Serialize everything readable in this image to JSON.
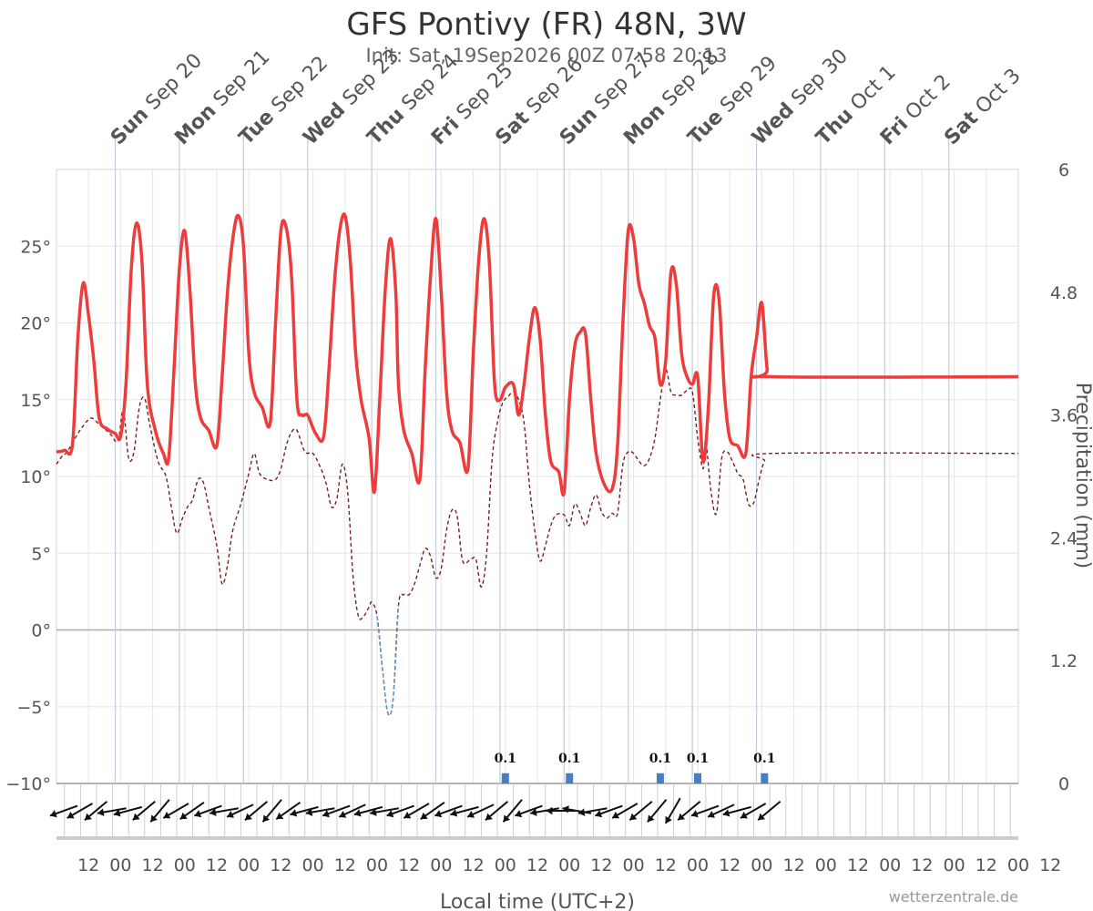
{
  "chart_data": {
    "type": "line",
    "title": "GFS Pontivy (FR) 48N, 3W",
    "subtitle": "Init: Sat, 19Sep2026 00Z 07:58 20:13",
    "xlabel": "Local time (UTC+2)",
    "ylabel_right": "Precipitation (mm)",
    "credit": "wetterzentrale.de",
    "temperature_axis": {
      "ylim": [
        -10,
        30
      ],
      "ticks": [
        -10,
        -5,
        0,
        5,
        10,
        15,
        20,
        25
      ],
      "tick_labels": [
        "−10°",
        "−5°",
        "0°",
        "5°",
        "10°",
        "15°",
        "20°",
        "25°"
      ]
    },
    "precipitation_axis": {
      "ylim": [
        0,
        6
      ],
      "ticks": [
        0,
        1.2,
        2.4,
        3.6,
        4.8,
        6
      ],
      "tick_labels": [
        "0",
        "1.2",
        "2.4",
        "3.6",
        "4.8",
        "6"
      ]
    },
    "x_range_hours": [
      0,
      360
    ],
    "time_tick_labels": [
      "12",
      "00",
      "12",
      "00",
      "12",
      "00",
      "12",
      "00",
      "12",
      "00",
      "12",
      "00",
      "12",
      "00",
      "12",
      "00",
      "12",
      "00",
      "12",
      "00",
      "12",
      "00",
      "12",
      "00",
      "12",
      "00",
      "12",
      "00",
      "12",
      "00",
      "12"
    ],
    "days": [
      {
        "dow": "Sun",
        "date": "Sep 20",
        "hour": 22
      },
      {
        "dow": "Mon",
        "date": "Sep 21",
        "hour": 46
      },
      {
        "dow": "Tue",
        "date": "Sep 22",
        "hour": 70
      },
      {
        "dow": "Wed",
        "date": "Sep 23",
        "hour": 94
      },
      {
        "dow": "Thu",
        "date": "Sep 24",
        "hour": 118
      },
      {
        "dow": "Fri",
        "date": "Sep 25",
        "hour": 142
      },
      {
        "dow": "Sat",
        "date": "Sep 26",
        "hour": 166
      },
      {
        "dow": "Sun",
        "date": "Sep 27",
        "hour": 190
      },
      {
        "dow": "Mon",
        "date": "Sep 28",
        "hour": 214
      },
      {
        "dow": "Tue",
        "date": "Sep 29",
        "hour": 238
      },
      {
        "dow": "Wed",
        "date": "Sep 30",
        "hour": 262
      },
      {
        "dow": "Thu",
        "date": "Oct 1",
        "hour": 286
      },
      {
        "dow": "Fri",
        "date": "Oct 2",
        "hour": 310
      },
      {
        "dow": "Sat",
        "date": "Oct 3",
        "hour": 334
      }
    ],
    "series": [
      {
        "color": "#ee3b3b",
        "style": "solid",
        "points": [
          [
            0,
            11.6
          ],
          [
            3,
            11.7
          ],
          [
            6,
            12.1
          ],
          [
            8,
            19.0
          ],
          [
            10,
            22.6
          ],
          [
            12,
            20.5
          ],
          [
            14,
            17.5
          ],
          [
            16,
            13.8
          ],
          [
            19,
            13.1
          ],
          [
            22,
            12.8
          ],
          [
            24,
            12.6
          ],
          [
            26,
            16.0
          ],
          [
            28,
            23.5
          ],
          [
            30,
            26.5
          ],
          [
            32,
            24.0
          ],
          [
            34,
            16.0
          ],
          [
            37,
            13.0
          ],
          [
            40,
            11.5
          ],
          [
            42,
            11.2
          ],
          [
            44,
            17.0
          ],
          [
            46,
            23.5
          ],
          [
            48,
            26.0
          ],
          [
            50,
            22.0
          ],
          [
            52,
            16.0
          ],
          [
            54,
            13.8
          ],
          [
            57,
            13.0
          ],
          [
            60,
            12.0
          ],
          [
            62,
            16.5
          ],
          [
            64,
            22.0
          ],
          [
            66,
            25.5
          ],
          [
            68,
            27.0
          ],
          [
            70,
            25.0
          ],
          [
            72,
            18.0
          ],
          [
            74,
            15.5
          ],
          [
            77,
            14.5
          ],
          [
            80,
            13.5
          ],
          [
            82,
            20.0
          ],
          [
            84,
            26.0
          ],
          [
            86,
            26.2
          ],
          [
            88,
            23.0
          ],
          [
            90,
            15.0
          ],
          [
            92,
            14.0
          ],
          [
            94,
            14.0
          ],
          [
            97,
            12.8
          ],
          [
            100,
            12.6
          ],
          [
            102,
            17.0
          ],
          [
            104,
            22.5
          ],
          [
            106,
            26.0
          ],
          [
            108,
            27.0
          ],
          [
            110,
            24.0
          ],
          [
            112,
            18.0
          ],
          [
            114,
            15.0
          ],
          [
            117,
            12.5
          ],
          [
            119,
            9.0
          ],
          [
            121,
            15.0
          ],
          [
            123,
            22.0
          ],
          [
            125,
            25.5
          ],
          [
            127,
            22.0
          ],
          [
            128,
            16.0
          ],
          [
            130,
            13.0
          ],
          [
            133,
            11.5
          ],
          [
            136,
            9.8
          ],
          [
            138,
            17.0
          ],
          [
            140,
            23.0
          ],
          [
            142,
            26.8
          ],
          [
            144,
            22.0
          ],
          [
            146,
            15.5
          ],
          [
            148,
            13.0
          ],
          [
            151,
            12.2
          ],
          [
            154,
            10.5
          ],
          [
            156,
            18.0
          ],
          [
            158,
            24.0
          ],
          [
            160,
            26.8
          ],
          [
            162,
            24.0
          ],
          [
            164,
            16.0
          ],
          [
            166,
            15.0
          ],
          [
            168,
            15.8
          ],
          [
            171,
            16.0
          ],
          [
            173,
            14.0
          ],
          [
            175,
            16.0
          ],
          [
            177,
            19.0
          ],
          [
            179,
            21.0
          ],
          [
            181,
            19.0
          ],
          [
            183,
            14.0
          ],
          [
            185,
            11.0
          ],
          [
            188,
            10.3
          ],
          [
            190,
            9.0
          ],
          [
            192,
            15.0
          ],
          [
            194,
            18.5
          ],
          [
            196,
            19.4
          ],
          [
            198,
            19.3
          ],
          [
            200,
            15.0
          ],
          [
            202,
            11.5
          ],
          [
            205,
            9.5
          ],
          [
            208,
            9.2
          ],
          [
            210,
            12.0
          ],
          [
            212,
            20.0
          ],
          [
            214,
            26.0
          ],
          [
            216,
            25.5
          ],
          [
            218,
            22.5
          ],
          [
            220,
            21.3
          ],
          [
            222,
            19.8
          ],
          [
            224,
            19.0
          ],
          [
            226,
            16.0
          ],
          [
            228,
            17.5
          ],
          [
            230,
            23.3
          ],
          [
            232,
            22.5
          ],
          [
            234,
            18.0
          ],
          [
            236,
            16.5
          ],
          [
            238,
            16.0
          ],
          [
            240,
            16.5
          ],
          [
            242,
            11.0
          ],
          [
            244,
            14.5
          ],
          [
            246,
            21.8
          ],
          [
            248,
            21.5
          ],
          [
            250,
            15.5
          ],
          [
            252,
            12.5
          ],
          [
            255,
            12.0
          ],
          [
            258,
            11.5
          ],
          [
            260,
            16.5
          ],
          [
            262,
            19.0
          ],
          [
            264,
            21.3
          ],
          [
            266,
            17.0
          ],
          [
            268,
            16.5
          ],
          [
            360,
            16.5
          ]
        ]
      },
      {
        "color": "#7a1f1f",
        "style": "dashed",
        "points": [
          [
            0,
            10.8
          ],
          [
            2,
            11.3
          ],
          [
            4,
            11.6
          ],
          [
            7,
            12.5
          ],
          [
            10,
            13.3
          ],
          [
            13,
            13.8
          ],
          [
            16,
            13.4
          ],
          [
            20,
            12.8
          ],
          [
            23,
            12.3
          ],
          [
            25,
            14.3
          ],
          [
            27,
            11.2
          ],
          [
            29,
            11.6
          ],
          [
            31,
            14.5
          ],
          [
            33,
            15.1
          ],
          [
            35,
            13.3
          ],
          [
            38,
            11.0
          ],
          [
            41,
            10.0
          ],
          [
            43,
            8.0
          ],
          [
            45,
            6.3
          ],
          [
            47,
            7.2
          ],
          [
            49,
            8.0
          ],
          [
            51,
            8.5
          ],
          [
            53,
            9.8
          ],
          [
            55,
            9.6
          ],
          [
            57,
            8.0
          ],
          [
            60,
            5.5
          ],
          [
            62,
            3.0
          ],
          [
            64,
            4.2
          ],
          [
            66,
            6.5
          ],
          [
            69,
            8.2
          ],
          [
            72,
            10.2
          ],
          [
            74,
            11.5
          ],
          [
            76,
            10.2
          ],
          [
            79,
            9.8
          ],
          [
            82,
            9.8
          ],
          [
            84,
            10.5
          ],
          [
            86,
            12.0
          ],
          [
            88,
            12.9
          ],
          [
            90,
            13.0
          ],
          [
            93,
            11.6
          ],
          [
            96,
            11.5
          ],
          [
            99,
            10.5
          ],
          [
            101,
            9.5
          ],
          [
            103,
            8.0
          ],
          [
            105,
            8.6
          ],
          [
            107,
            10.8
          ],
          [
            109,
            9.0
          ],
          [
            111,
            3.5
          ],
          [
            113,
            0.9
          ],
          [
            115,
            0.9
          ],
          [
            117,
            1.5
          ],
          [
            118,
            1.8
          ],
          [
            120,
            0.9
          ],
          [
            122,
            -2.5
          ],
          [
            124,
            -5.4
          ],
          [
            126,
            -4.5
          ],
          [
            128,
            1.6
          ],
          [
            130,
            2.3
          ],
          [
            132,
            2.3
          ],
          [
            134,
            3.0
          ],
          [
            136,
            4.2
          ],
          [
            138,
            5.3
          ],
          [
            140,
            4.8
          ],
          [
            142,
            3.4
          ],
          [
            144,
            4.0
          ],
          [
            146,
            6.5
          ],
          [
            148,
            7.8
          ],
          [
            150,
            7.4
          ],
          [
            152,
            4.5
          ],
          [
            155,
            4.6
          ],
          [
            157,
            4.6
          ],
          [
            159,
            2.8
          ],
          [
            161,
            5.0
          ],
          [
            163,
            11.0
          ],
          [
            165,
            13.5
          ],
          [
            167,
            14.8
          ],
          [
            169,
            15.2
          ],
          [
            171,
            15.5
          ],
          [
            173,
            15.0
          ],
          [
            175,
            13.5
          ],
          [
            177,
            9.5
          ],
          [
            179,
            6.5
          ],
          [
            181,
            4.5
          ],
          [
            183,
            5.5
          ],
          [
            185,
            6.8
          ],
          [
            187,
            7.5
          ],
          [
            190,
            7.5
          ],
          [
            192,
            6.8
          ],
          [
            194,
            8.2
          ],
          [
            196,
            7.6
          ],
          [
            198,
            6.8
          ],
          [
            200,
            8.0
          ],
          [
            202,
            8.8
          ],
          [
            204,
            7.7
          ],
          [
            206,
            7.3
          ],
          [
            208,
            7.6
          ],
          [
            210,
            7.6
          ],
          [
            212,
            10.8
          ],
          [
            214,
            11.6
          ],
          [
            216,
            11.5
          ],
          [
            218,
            11.0
          ],
          [
            220,
            10.7
          ],
          [
            222,
            11.2
          ],
          [
            224,
            12.5
          ],
          [
            226,
            15.0
          ],
          [
            228,
            17.0
          ],
          [
            230,
            15.5
          ],
          [
            232,
            15.3
          ],
          [
            234,
            15.3
          ],
          [
            236,
            15.6
          ],
          [
            238,
            15.5
          ],
          [
            240,
            12.5
          ],
          [
            242,
            10.5
          ],
          [
            243,
            12.3
          ],
          [
            245,
            9.0
          ],
          [
            247,
            7.6
          ],
          [
            249,
            11.2
          ],
          [
            251,
            11.6
          ],
          [
            253,
            11.0
          ],
          [
            255,
            10.2
          ],
          [
            257,
            9.8
          ],
          [
            259,
            8.2
          ],
          [
            261,
            8.3
          ],
          [
            263,
            9.8
          ],
          [
            265,
            11.0
          ],
          [
            268,
            11.5
          ],
          [
            360,
            11.5
          ]
        ]
      }
    ],
    "freezing_segment": {
      "color": "#5b9bd5",
      "style": "dashed"
    },
    "precipitation_bars": [
      {
        "hour": 168,
        "value": 0.1,
        "label": "0.1"
      },
      {
        "hour": 192,
        "value": 0.1,
        "label": "0.1"
      },
      {
        "hour": 226,
        "value": 0.1,
        "label": "0.1"
      },
      {
        "hour": 240,
        "value": 0.1,
        "label": "0.1"
      },
      {
        "hour": 265,
        "value": 0.1,
        "label": "0.1"
      }
    ],
    "wind_arrows_hours": [
      0,
      6,
      12,
      18,
      24,
      30,
      36,
      42,
      48,
      54,
      60,
      66,
      72,
      78,
      84,
      90,
      96,
      102,
      108,
      114,
      120,
      126,
      132,
      138,
      144,
      150,
      156,
      162,
      168,
      174,
      180,
      186,
      192,
      198,
      204,
      210,
      216,
      222,
      228,
      234,
      240,
      246,
      252,
      258,
      264
    ],
    "wind_direction_deg": [
      250,
      240,
      230,
      260,
      255,
      230,
      220,
      240,
      235,
      250,
      260,
      245,
      230,
      220,
      235,
      255,
      260,
      250,
      245,
      255,
      260,
      250,
      240,
      235,
      250,
      255,
      245,
      230,
      220,
      250,
      260,
      270,
      280,
      260,
      250,
      240,
      230,
      220,
      210,
      230,
      250,
      245,
      255,
      240,
      230
    ]
  }
}
